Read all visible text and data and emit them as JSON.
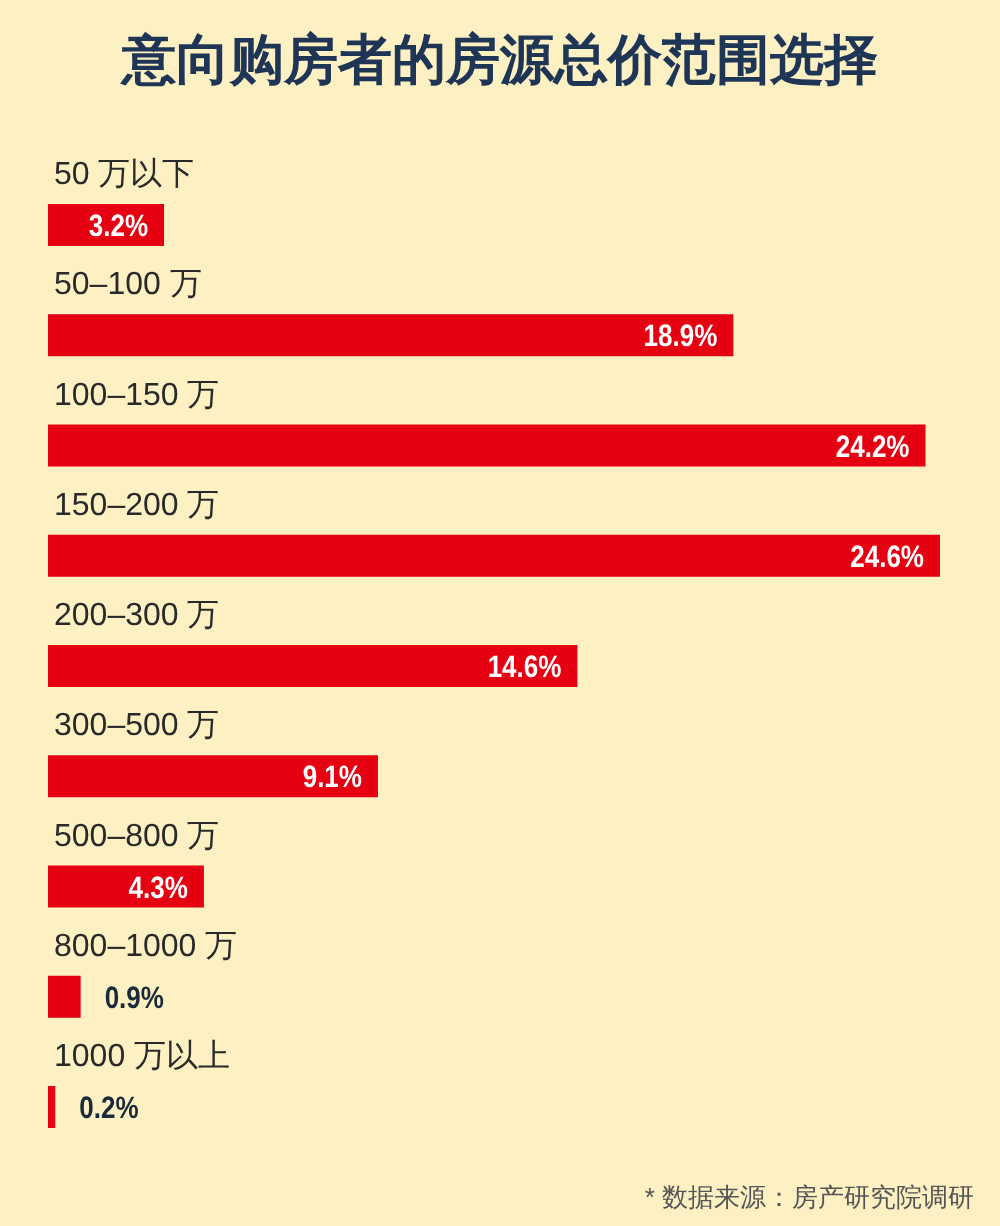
{
  "chart_data": {
    "type": "bar",
    "orientation": "horizontal",
    "title": "意向购房者的房源总价范围选择",
    "categories": [
      "50 万以下",
      "50–100 万",
      "100–150 万",
      "150–200 万",
      "200–300 万",
      "300–500 万",
      "500–800 万",
      "800–1000 万",
      "1000 万以上"
    ],
    "values": [
      3.2,
      18.9,
      24.2,
      24.6,
      14.6,
      9.1,
      4.3,
      0.9,
      0.2
    ],
    "color": "#e50012",
    "value_labels": [
      "3.2%",
      "18.9%",
      "24.2%",
      "24.6%",
      "14.6%",
      "9.1%",
      "4.3%",
      "0.9%",
      "0.2%"
    ],
    "annotations": [
      "* 数据来源：房产研究院调研"
    ]
  }
}
